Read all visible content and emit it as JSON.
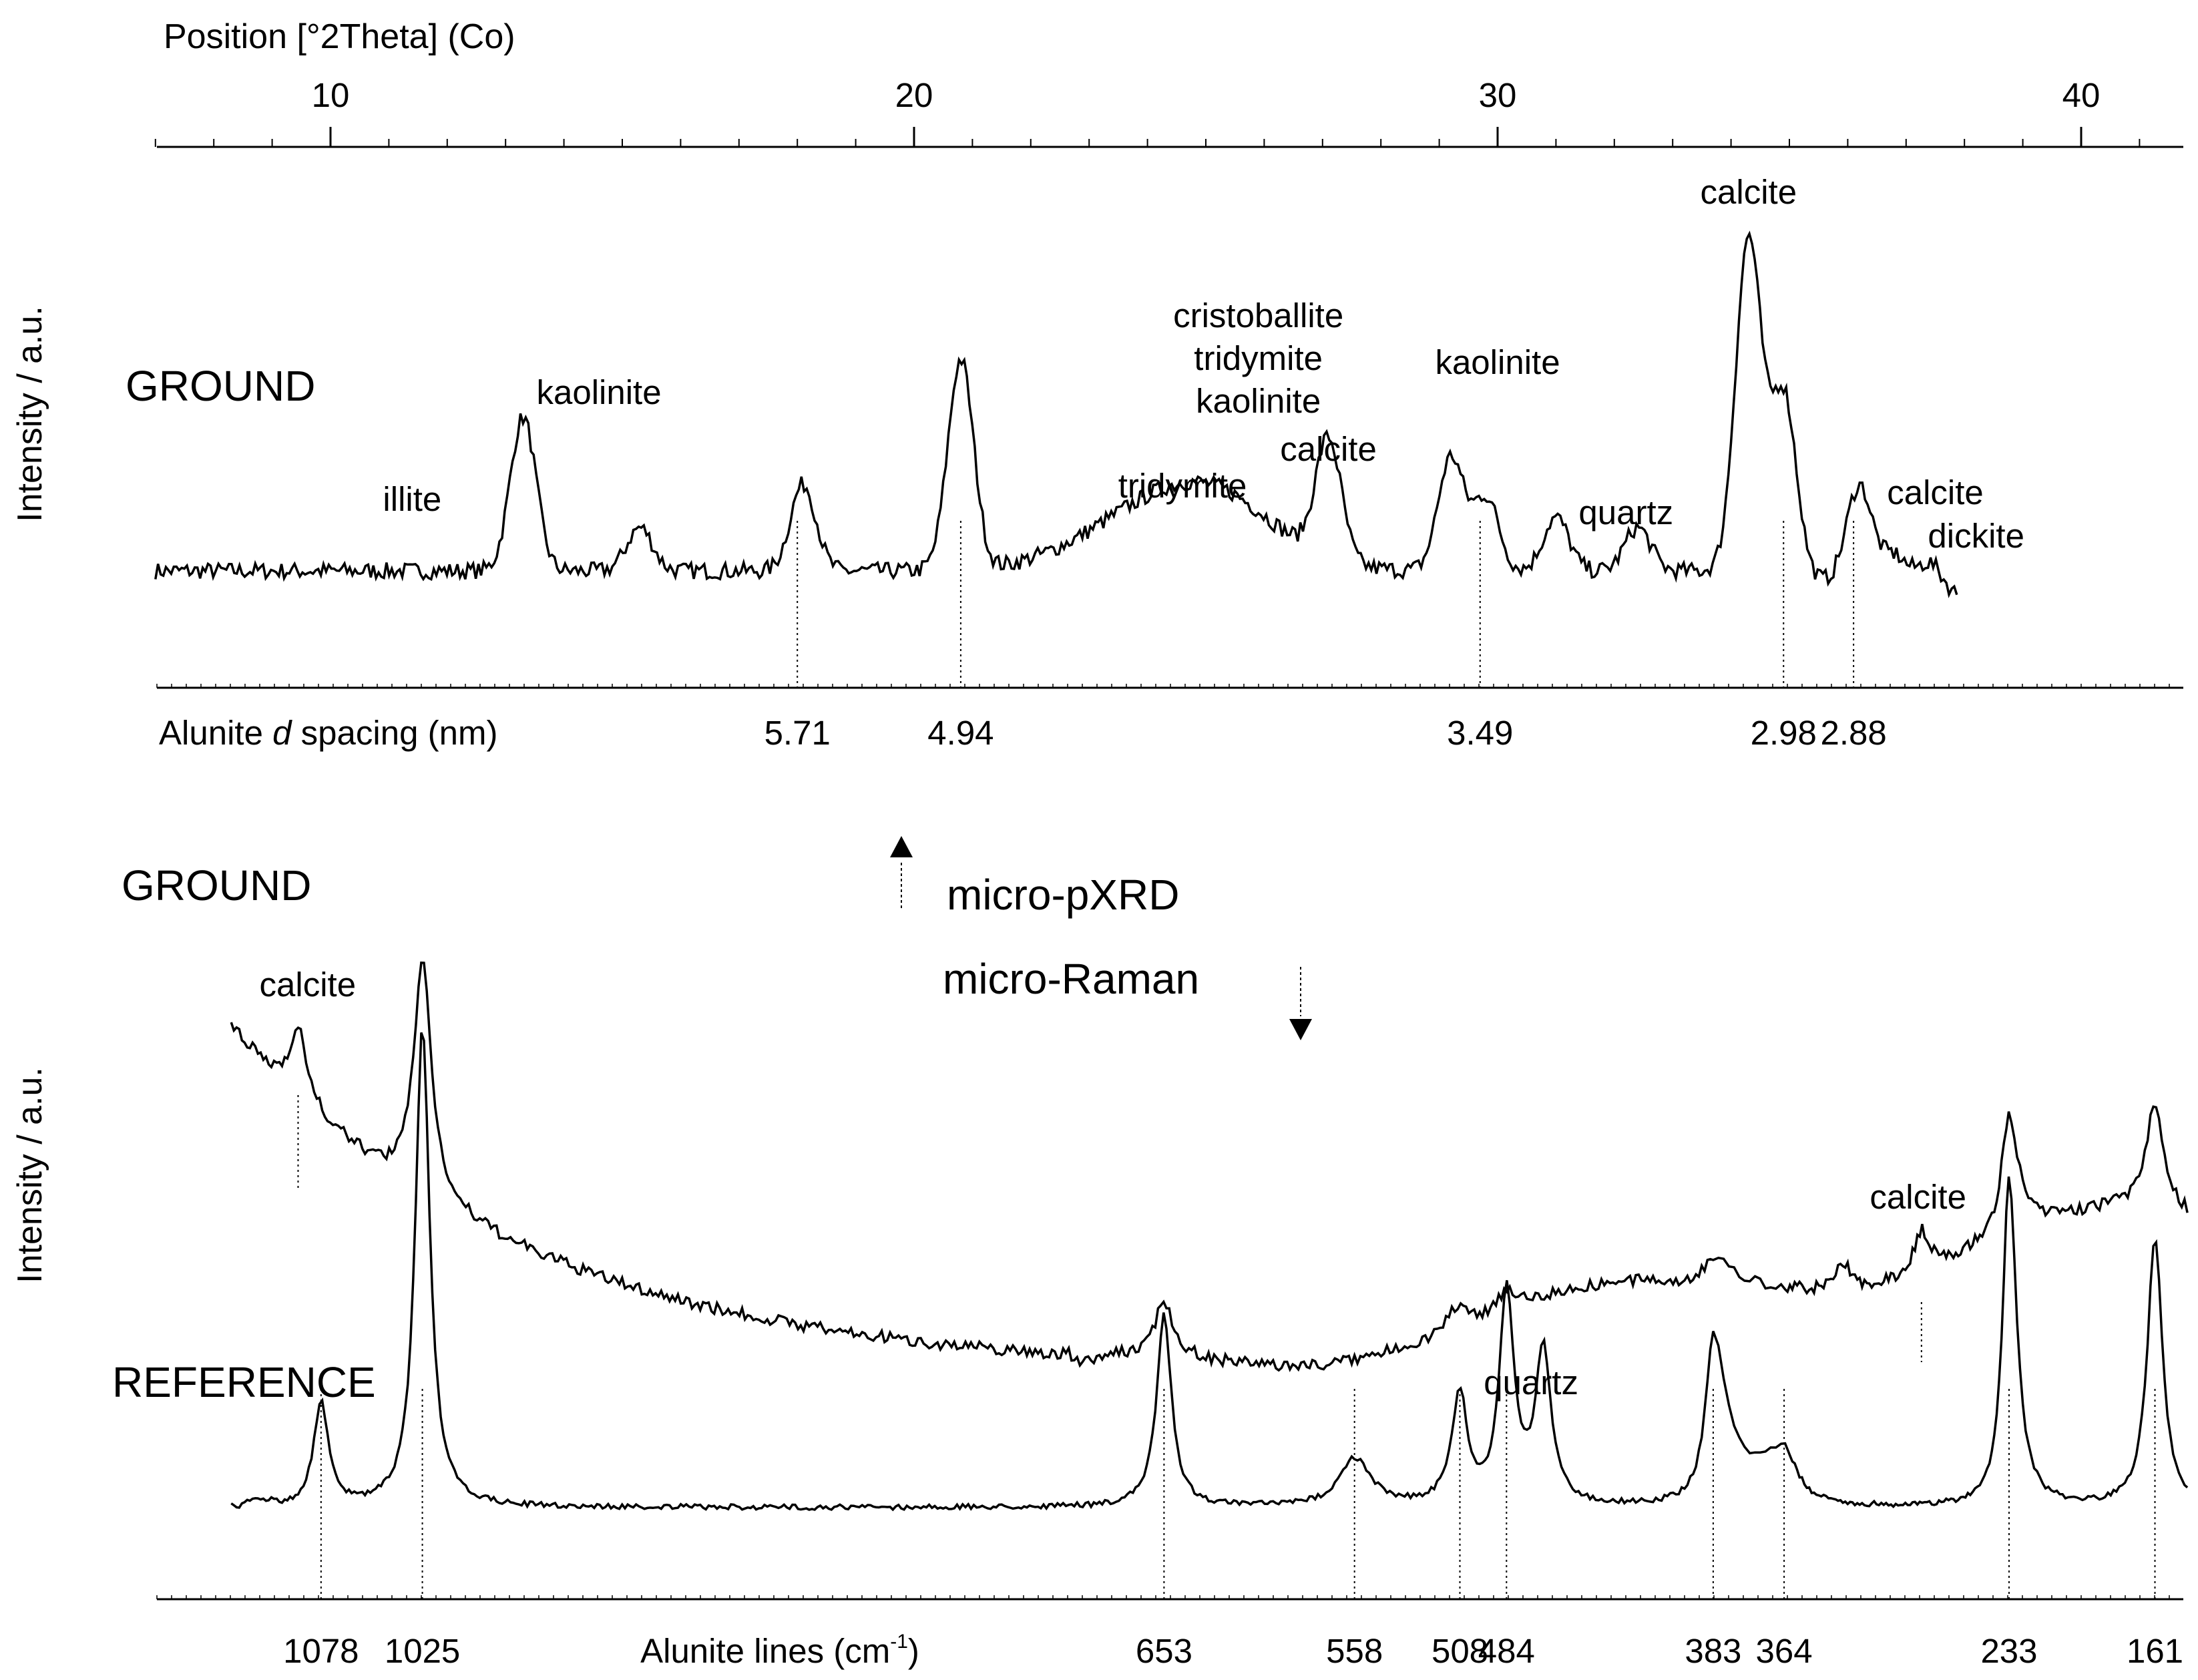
{
  "chart_data": [
    {
      "type": "line",
      "technique": "micro-pXRD",
      "title": "Position [°2Theta] (Co)",
      "ylabel": "Intensity / a.u.",
      "xlim": [
        7,
        41.6
      ],
      "x_ticks": [
        10,
        20,
        30,
        40
      ],
      "series_name": "GROUND",
      "peaks": [
        {
          "x": 13.3,
          "h": 0.46
        },
        {
          "x": 15.3,
          "h": 0.13
        },
        {
          "x": 18.1,
          "h": 0.26
        },
        {
          "x": 20.8,
          "h": 0.63
        },
        {
          "x": 25.1,
          "h": 0.22
        },
        {
          "x": 23.6,
          "h": 0.1
        },
        {
          "x": 27.1,
          "h": 0.36
        },
        {
          "x": 29.2,
          "h": 0.34
        },
        {
          "x": 29.8,
          "h": 0.22
        },
        {
          "x": 31.0,
          "h": 0.16
        },
        {
          "x": 32.4,
          "h": 0.13
        },
        {
          "x": 34.3,
          "h": 1.0
        },
        {
          "x": 34.9,
          "h": 0.55
        },
        {
          "x": 36.2,
          "h": 0.3
        },
        {
          "x": 36.8,
          "h": 0.1
        },
        {
          "x": 37.4,
          "h": 0.09
        }
      ],
      "peak_labels": [
        {
          "text": "illite",
          "x": 11.4
        },
        {
          "text": "kaolinite",
          "x": 14.6
        },
        {
          "text": "tridymite",
          "x": 24.6
        },
        {
          "text": "cristoballite",
          "x": 25.9
        },
        {
          "text": "tridymite",
          "x": 25.9
        },
        {
          "text": "kaolinite",
          "x": 25.9
        },
        {
          "text": "calcite",
          "x": 27.1
        },
        {
          "text": "kaolinite",
          "x": 30.0
        },
        {
          "text": "quartz",
          "x": 32.2
        },
        {
          "text": "calcite",
          "x": 34.3
        },
        {
          "text": "calcite",
          "x": 37.5
        },
        {
          "text": "dickite",
          "x": 38.2
        }
      ],
      "secondary_axis": {
        "label_prefix": "Alunite ",
        "label_italic": "d",
        "label_suffix": " spacing (nm)",
        "lines": [
          {
            "label": "5.71",
            "x": 18.0
          },
          {
            "label": "4.94",
            "x": 20.8
          },
          {
            "label": "3.49",
            "x": 29.7
          },
          {
            "label": "2.98",
            "x": 34.9
          },
          {
            "label": "2.88",
            "x": 36.1
          }
        ]
      }
    },
    {
      "type": "line",
      "technique": "micro-Raman",
      "ylabel": "Intensity / a.u.",
      "xlabel_prefix": "Alunite lines (cm",
      "xlabel_sup": "-1",
      "xlabel_suffix": ")",
      "xlim": [
        1120,
        150
      ],
      "x_scale_anchors": [
        {
          "wn": 1078,
          "frac": 0.081
        },
        {
          "wn": 1025,
          "frac": 0.131
        },
        {
          "wn": 653,
          "frac": 0.497
        },
        {
          "wn": 558,
          "frac": 0.591
        },
        {
          "wn": 508,
          "frac": 0.643
        },
        {
          "wn": 484,
          "frac": 0.666
        },
        {
          "wn": 383,
          "frac": 0.768
        },
        {
          "wn": 364,
          "frac": 0.803
        },
        {
          "wn": 233,
          "frac": 0.914
        },
        {
          "wn": 161,
          "frac": 0.986
        }
      ],
      "series": [
        {
          "name": "GROUND",
          "peaks": [
            {
              "wn": 1090,
              "h": 0.26
            },
            {
              "wn": 1025,
              "h": 0.85
            },
            {
              "wn": 653,
              "h": 0.2
            },
            {
              "wn": 509,
              "h": 0.08
            },
            {
              "wn": 484,
              "h": 0.07
            },
            {
              "wn": 383,
              "h": 0.1
            },
            {
              "wn": 330,
              "h": 0.1
            },
            {
              "wn": 284,
              "h": 0.15
            },
            {
              "wn": 233,
              "h": 0.42
            },
            {
              "wn": 161,
              "h": 0.38
            }
          ]
        },
        {
          "name": "REFERENCE",
          "peaks": [
            {
              "wn": 1078,
              "h": 0.22
            },
            {
              "wn": 1025,
              "h": 1.0
            },
            {
              "wn": 653,
              "h": 0.4
            },
            {
              "wn": 558,
              "h": 0.1
            },
            {
              "wn": 508,
              "h": 0.23
            },
            {
              "wn": 484,
              "h": 0.44
            },
            {
              "wn": 466,
              "h": 0.32
            },
            {
              "wn": 383,
              "h": 0.34
            },
            {
              "wn": 364,
              "h": 0.11
            },
            {
              "wn": 233,
              "h": 0.69
            },
            {
              "wn": 161,
              "h": 0.56
            }
          ]
        }
      ],
      "peak_labels": [
        {
          "text": "calcite",
          "wn": 1085
        },
        {
          "text": "quartz",
          "wn": 472
        },
        {
          "text": "calcite",
          "wn": 286
        }
      ],
      "alunite_lines": [
        "1078",
        "1025",
        "653",
        "558",
        "508",
        "484",
        "383",
        "364",
        "233",
        "161"
      ],
      "calcite_markers": [
        1090,
        284
      ]
    }
  ],
  "labels": {
    "ground_top": "GROUND",
    "ground_bottom": "GROUND",
    "reference": "REFERENCE",
    "xrd": "micro-pXRD",
    "raman": "micro-Raman"
  }
}
